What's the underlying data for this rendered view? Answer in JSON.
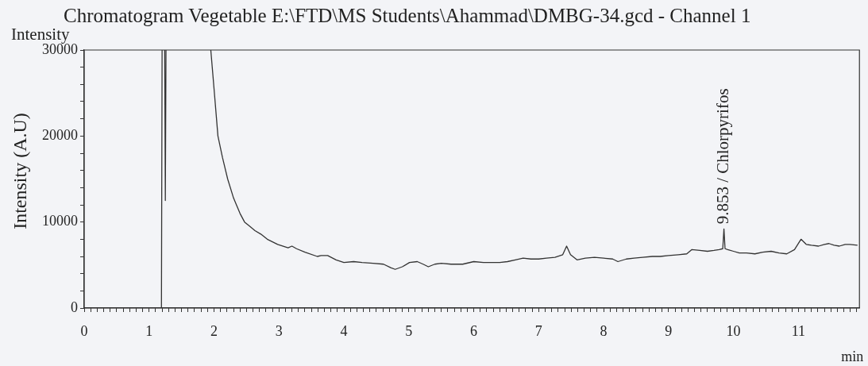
{
  "chart_data": {
    "type": "line",
    "title": "Chromatogram Vegetable E:\\FTD\\MS Students\\Ahammad\\DMBG-34.gcd - Channel 1",
    "xlabel": "min",
    "ylabel": "Intensity (A.U)",
    "annotations": [
      "Intensity",
      {
        "text": "9.853 / Chlorpyrifos",
        "x": 9.853,
        "y": 9200
      }
    ],
    "color": "#333333",
    "x": [
      1.19,
      1.2,
      1.21,
      1.24,
      1.25,
      1.26,
      1.6,
      1.95,
      2.0,
      2.06,
      2.13,
      2.21,
      2.3,
      2.4,
      2.47,
      2.55,
      2.63,
      2.72,
      2.82,
      2.98,
      3.14,
      3.2,
      3.27,
      3.4,
      3.59,
      3.65,
      3.75,
      3.88,
      4.0,
      4.15,
      4.28,
      4.45,
      4.61,
      4.72,
      4.79,
      4.9,
      5.01,
      5.13,
      5.22,
      5.3,
      5.4,
      5.5,
      5.65,
      5.83,
      6.0,
      6.15,
      6.27,
      6.4,
      6.52,
      6.64,
      6.76,
      6.88,
      7.0,
      7.12,
      7.25,
      7.37,
      7.43,
      7.49,
      7.59,
      7.72,
      7.86,
      8.0,
      8.14,
      8.22,
      8.35,
      8.47,
      8.6,
      8.75,
      8.87,
      9.0,
      9.15,
      9.28,
      9.36,
      9.48,
      9.6,
      9.7,
      9.78,
      9.835,
      9.853,
      9.87,
      9.91,
      10.0,
      10.09,
      10.2,
      10.33,
      10.45,
      10.58,
      10.7,
      10.82,
      10.94,
      11.04,
      11.12,
      11.2,
      11.31,
      11.4,
      11.47,
      11.55,
      11.63,
      11.72,
      11.79,
      11.91
    ],
    "values": [
      0,
      30000,
      null,
      30000,
      12500,
      30000,
      null,
      30000,
      25500,
      20000,
      17500,
      15000,
      12800,
      11000,
      10000,
      9500,
      9000,
      8600,
      8000,
      7400,
      7000,
      7200,
      6900,
      6500,
      6000,
      6100,
      6100,
      5600,
      5300,
      5400,
      5300,
      5200,
      5100,
      4700,
      4500,
      4800,
      5300,
      5400,
      5100,
      4800,
      5100,
      5200,
      5100,
      5100,
      5400,
      5300,
      5300,
      5300,
      5400,
      5600,
      5800,
      5700,
      5700,
      5800,
      5900,
      6200,
      7200,
      6200,
      5600,
      5800,
      5900,
      5800,
      5700,
      5400,
      5700,
      5800,
      5900,
      6000,
      6000,
      6100,
      6200,
      6300,
      6800,
      6700,
      6600,
      6700,
      6800,
      6900,
      9200,
      6900,
      6800,
      6600,
      6400,
      6400,
      6300,
      6500,
      6600,
      6400,
      6300,
      6800,
      8000,
      7400,
      7300,
      7200,
      7400,
      7500,
      7300,
      7200,
      7400,
      7400,
      7300
    ],
    "xlim": [
      0,
      11.94
    ],
    "ylim": [
      0,
      30000
    ],
    "xticks": [
      0,
      {
        "value": 0.1,
        "label": null
      },
      {
        "value": 0.2,
        "label": null
      },
      {
        "value": 0.3,
        "label": null
      },
      {
        "value": 0.4,
        "label": null
      },
      {
        "value": 0.5,
        "label": null
      },
      {
        "value": 0.6,
        "label": null
      },
      {
        "value": 0.7,
        "label": null
      },
      {
        "value": 0.8,
        "label": null
      },
      {
        "value": 0.9,
        "label": null
      },
      1,
      {
        "value": 1.1,
        "label": null
      },
      {
        "value": 1.2,
        "label": null
      },
      {
        "value": 1.3,
        "label": null
      },
      {
        "value": 1.4,
        "label": null
      },
      {
        "value": 1.5,
        "label": null
      },
      {
        "value": 1.6,
        "label": null
      },
      {
        "value": 1.7,
        "label": null
      },
      {
        "value": 1.8,
        "label": null
      },
      {
        "value": 1.9,
        "label": null
      },
      2,
      {
        "value": 2.1,
        "label": null
      },
      {
        "value": 2.2,
        "label": null
      },
      {
        "value": 2.3,
        "label": null
      },
      {
        "value": 2.4,
        "label": null
      },
      {
        "value": 2.5,
        "label": null
      },
      {
        "value": 2.6,
        "label": null
      },
      {
        "value": 2.7,
        "label": null
      },
      {
        "value": 2.8,
        "label": null
      },
      {
        "value": 2.9,
        "label": null
      },
      3,
      {
        "value": 3.1,
        "label": null
      },
      {
        "value": 3.2,
        "label": null
      },
      {
        "value": 3.3,
        "label": null
      },
      {
        "value": 3.4,
        "label": null
      },
      {
        "value": 3.5,
        "label": null
      },
      {
        "value": 3.6,
        "label": null
      },
      {
        "value": 3.7,
        "label": null
      },
      {
        "value": 3.8,
        "label": null
      },
      {
        "value": 3.9,
        "label": null
      },
      4,
      {
        "value": 4.1,
        "label": null
      },
      {
        "value": 4.2,
        "label": null
      },
      {
        "value": 4.3,
        "label": null
      },
      {
        "value": 4.4,
        "label": null
      },
      {
        "value": 4.5,
        "label": null
      },
      {
        "value": 4.6,
        "label": null
      },
      {
        "value": 4.7,
        "label": null
      },
      {
        "value": 4.8,
        "label": null
      },
      {
        "value": 4.9,
        "label": null
      },
      5,
      {
        "value": 5.1,
        "label": null
      },
      {
        "value": 5.2,
        "label": null
      },
      {
        "value": 5.3,
        "label": null
      },
      {
        "value": 5.4,
        "label": null
      },
      {
        "value": 5.5,
        "label": null
      },
      {
        "value": 5.6,
        "label": null
      },
      {
        "value": 5.7,
        "label": null
      },
      {
        "value": 5.8,
        "label": null
      },
      {
        "value": 5.9,
        "label": null
      },
      6,
      {
        "value": 6.1,
        "label": null
      },
      {
        "value": 6.2,
        "label": null
      },
      {
        "value": 6.3,
        "label": null
      },
      {
        "value": 6.4,
        "label": null
      },
      {
        "value": 6.5,
        "label": null
      },
      {
        "value": 6.6,
        "label": null
      },
      {
        "value": 6.7,
        "label": null
      },
      {
        "value": 6.8,
        "label": null
      },
      {
        "value": 6.9,
        "label": null
      },
      7,
      {
        "value": 7.1,
        "label": null
      },
      {
        "value": 7.2,
        "label": null
      },
      {
        "value": 7.3,
        "label": null
      },
      {
        "value": 7.4,
        "label": null
      },
      {
        "value": 7.5,
        "label": null
      },
      {
        "value": 7.6,
        "label": null
      },
      {
        "value": 7.7,
        "label": null
      },
      {
        "value": 7.8,
        "label": null
      },
      {
        "value": 7.9,
        "label": null
      },
      8,
      {
        "value": 8.1,
        "label": null
      },
      {
        "value": 8.2,
        "label": null
      },
      {
        "value": 8.3,
        "label": null
      },
      {
        "value": 8.4,
        "label": null
      },
      {
        "value": 8.5,
        "label": null
      },
      {
        "value": 8.6,
        "label": null
      },
      {
        "value": 8.7,
        "label": null
      },
      {
        "value": 8.8,
        "label": null
      },
      {
        "value": 8.9,
        "label": null
      },
      9,
      {
        "value": 9.1,
        "label": null
      },
      {
        "value": 9.2,
        "label": null
      },
      {
        "value": 9.3,
        "label": null
      },
      {
        "value": 9.4,
        "label": null
      },
      {
        "value": 9.5,
        "label": null
      },
      {
        "value": 9.6,
        "label": null
      },
      {
        "value": 9.7,
        "label": null
      },
      {
        "value": 9.8,
        "label": null
      },
      {
        "value": 9.9,
        "label": null
      },
      10,
      {
        "value": 10.1,
        "label": null
      },
      {
        "value": 10.2,
        "label": null
      },
      {
        "value": 10.3,
        "label": null
      },
      {
        "value": 10.4,
        "label": null
      },
      {
        "value": 10.5,
        "label": null
      },
      {
        "value": 10.6,
        "label": null
      },
      {
        "value": 10.7,
        "label": null
      },
      {
        "value": 10.8,
        "label": null
      },
      {
        "value": 10.9,
        "label": null
      },
      11,
      {
        "value": 11.1,
        "label": null
      },
      {
        "value": 11.2,
        "label": null
      },
      {
        "value": 11.3,
        "label": null
      },
      {
        "value": 11.4,
        "label": null
      },
      {
        "value": 11.5,
        "label": null
      },
      {
        "value": 11.6,
        "label": null
      },
      {
        "value": 11.7,
        "label": null
      },
      {
        "value": 11.8,
        "label": null
      },
      {
        "value": 11.9,
        "label": null
      }
    ],
    "yticks": [
      0,
      {
        "value": 2000,
        "label": null
      },
      {
        "value": 4000,
        "label": null
      },
      {
        "value": 6000,
        "label": null
      },
      {
        "value": 8000,
        "label": null
      },
      10000,
      {
        "value": 12000,
        "label": null
      },
      {
        "value": 14000,
        "label": null
      },
      {
        "value": 16000,
        "label": null
      },
      {
        "value": 18000,
        "label": null
      },
      20000,
      {
        "value": 22000,
        "label": null
      },
      {
        "value": 24000,
        "label": null
      },
      {
        "value": 26000,
        "label": null
      },
      {
        "value": 28000,
        "label": null
      },
      30000
    ]
  }
}
